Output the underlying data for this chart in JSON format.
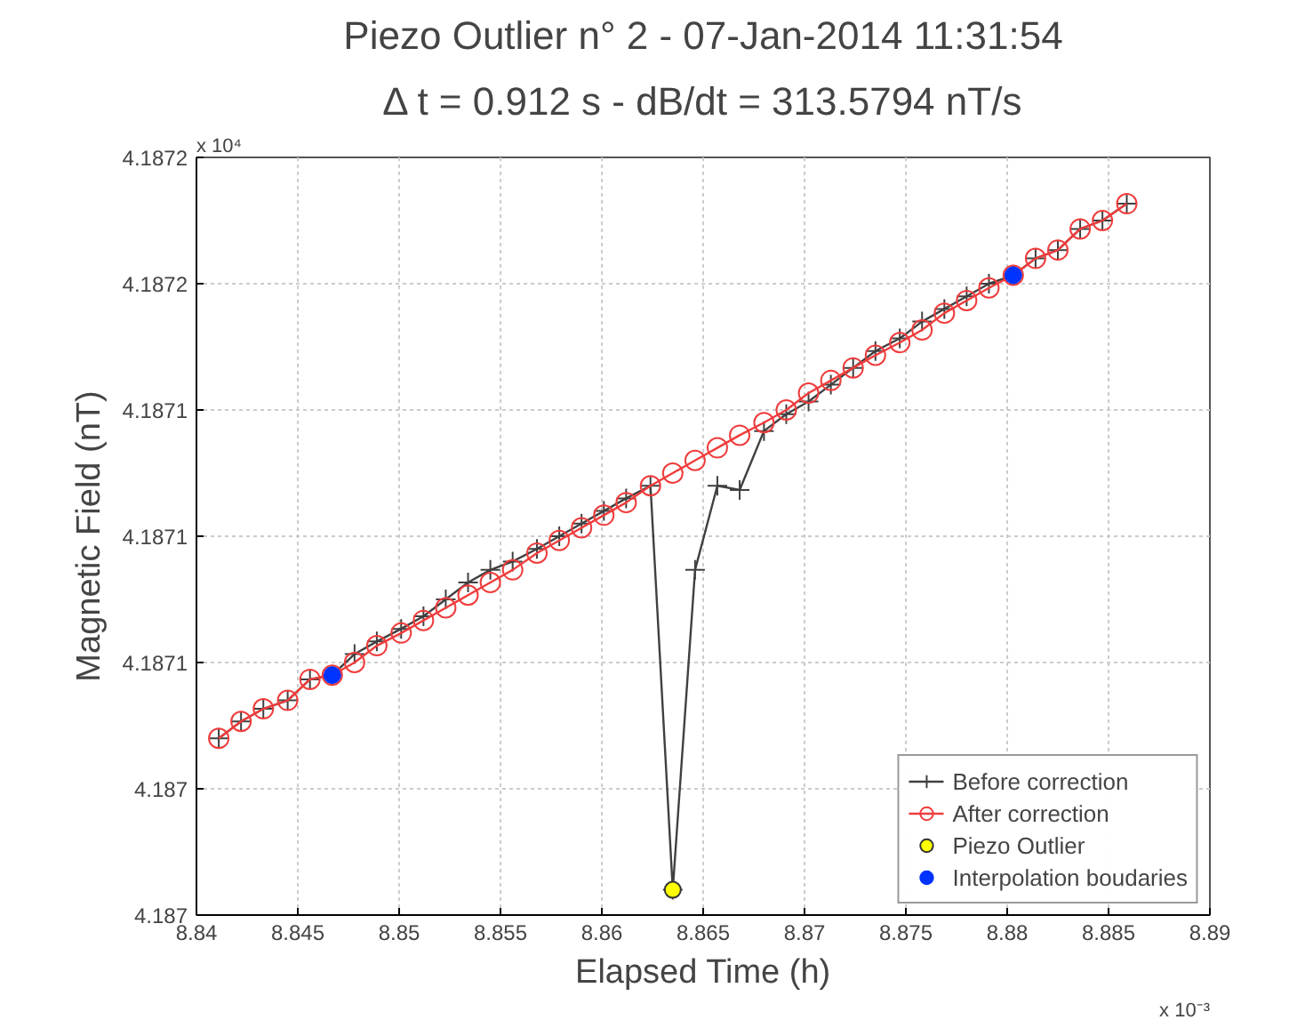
{
  "chart_data": {
    "type": "line",
    "title": "Piezo Outlier n° 2 - 07-Jan-2014 11:31:54",
    "subtitle": "Δ t = 0.912 s - dB/dt = 313.5794 nT/s",
    "xlabel": "Elapsed Time (h)",
    "ylabel": "Magnetic Field (nT)",
    "annotations": [
      "x 10⁴",
      "x 10⁻³"
    ],
    "x": [
      8.8411,
      8.8422,
      8.8433,
      8.8445,
      8.8456,
      8.8467,
      8.8478,
      8.8489,
      8.8501,
      8.8512,
      8.8523,
      8.8534,
      8.8545,
      8.8556,
      8.8568,
      8.8579,
      8.859,
      8.8601,
      8.8612,
      8.8624,
      8.8635,
      8.8646,
      8.8657,
      8.8668,
      8.868,
      8.8691,
      8.8702,
      8.8713,
      8.8724,
      8.8735,
      8.8747,
      8.8758,
      8.8769,
      8.878,
      8.8791,
      8.8803,
      8.8814,
      8.8825,
      8.8836,
      8.8847,
      8.8859
    ],
    "series": [
      {
        "name": "Before correction",
        "type": "line",
        "marker": "cross",
        "color": "#404040",
        "values": [
          4.187042,
          4.187046,
          4.187049,
          4.187051,
          4.187056,
          4.187057,
          4.187062,
          4.187065,
          4.187068,
          4.187071,
          4.187075,
          4.187079,
          4.187082,
          4.187084,
          4.187087,
          4.18709,
          4.187093,
          4.187096,
          4.187099,
          4.187102,
          4.187006,
          4.187082,
          4.187102,
          4.187101,
          4.187115,
          4.187119,
          4.187122,
          4.187126,
          4.18713,
          4.187134,
          4.187137,
          4.187141,
          4.187144,
          4.187147,
          4.18715,
          4.187152,
          4.187156,
          4.187158,
          4.187163,
          4.187165,
          4.187169
        ]
      },
      {
        "name": "After correction",
        "type": "line",
        "marker": "circle",
        "color": "#f03c3c",
        "values": [
          4.187042,
          4.187046,
          4.187049,
          4.187051,
          4.187056,
          4.187057,
          4.18706,
          4.187064,
          4.187067,
          4.18707,
          4.187073,
          4.187076,
          4.187079,
          4.187082,
          4.187086,
          4.187089,
          4.187092,
          4.187095,
          4.187098,
          4.187102,
          4.187105,
          4.187108,
          4.187111,
          4.187114,
          4.187117,
          4.18712,
          4.187124,
          4.187127,
          4.18713,
          4.187133,
          4.187136,
          4.187139,
          4.187143,
          4.187146,
          4.187149,
          4.187152,
          4.187156,
          4.187158,
          4.187163,
          4.187165,
          4.187169
        ]
      },
      {
        "name": "Piezo Outlier",
        "type": "scatter",
        "marker": "circle",
        "color": "#ffff00",
        "x": [
          8.8635
        ],
        "values": [
          4.187006
        ]
      },
      {
        "name": "Interpolation boudaries",
        "type": "scatter",
        "marker": "circle",
        "color": "#0033ff",
        "x": [
          8.8467,
          8.8803
        ],
        "values": [
          4.187057,
          4.187152
        ]
      }
    ],
    "xlim": [
      8.84,
      8.89
    ],
    "xticks": [
      8.84,
      8.845,
      8.85,
      8.855,
      8.86,
      8.865,
      8.87,
      8.875,
      8.88,
      8.885,
      8.89
    ],
    "ylim": [
      4.187,
      4.18718
    ],
    "yticks": [
      {
        "value": 4.187,
        "label": "4.187"
      },
      {
        "value": 4.18703,
        "label": "4.187"
      },
      {
        "value": 4.18706,
        "label": "4.1871"
      },
      {
        "value": 4.18709,
        "label": "4.1871"
      },
      {
        "value": 4.18712,
        "label": "4.1871"
      },
      {
        "value": 4.18715,
        "label": "4.1872"
      },
      {
        "value": 4.18718,
        "label": "4.1872"
      }
    ],
    "grid": true,
    "legend": "bottom right"
  }
}
